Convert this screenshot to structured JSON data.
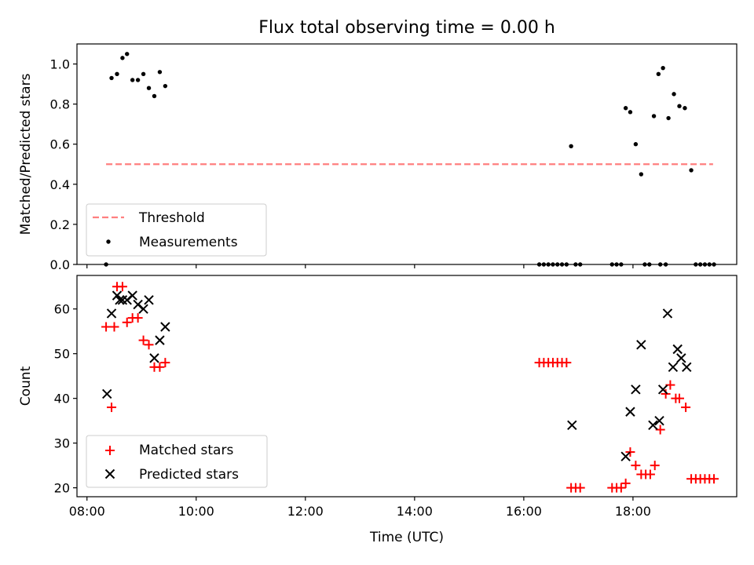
{
  "colors": {
    "threshold": "#ff7f7f",
    "measurements": "#000000",
    "matched": "#ff0000",
    "predicted": "#000000",
    "legend_border": "#cccccc"
  },
  "chart_data": [
    {
      "type": "scatter",
      "title": "Flux total observing time = 0.00 h",
      "xlabel": "",
      "ylabel": "Matched/Predicted stars",
      "xlim": [
        "07:49",
        "19:54"
      ],
      "ylim": [
        0,
        1.1
      ],
      "yticks": [
        0.0,
        0.2,
        0.4,
        0.6,
        0.8,
        1.0
      ],
      "ytick_labels": [
        "0.0",
        "0.2",
        "0.4",
        "0.6",
        "0.8",
        "1.0"
      ],
      "xticks": [
        "08:00",
        "10:00",
        "12:00",
        "14:00",
        "16:00",
        "18:00"
      ],
      "grid": false,
      "legend_position": "lower-left",
      "threshold": {
        "name": "Threshold",
        "x": [
          "08:21",
          "19:28"
        ],
        "y": 0.5,
        "style": "dashed"
      },
      "series": [
        {
          "name": "Measurements",
          "marker": "dot",
          "x": [
            "08:21",
            "08:27",
            "08:33",
            "08:39",
            "08:44",
            "08:50",
            "08:56",
            "09:02",
            "09:08",
            "09:14",
            "09:20",
            "09:26",
            "16:17",
            "16:22",
            "16:27",
            "16:32",
            "16:37",
            "16:42",
            "16:47",
            "16:52",
            "16:57",
            "17:02",
            "17:37",
            "17:42",
            "17:47",
            "17:52",
            "17:57",
            "18:03",
            "18:09",
            "18:13",
            "18:18",
            "18:23",
            "18:28",
            "18:33",
            "18:39",
            "18:45",
            "18:51",
            "18:57",
            "19:04",
            "19:09",
            "19:14",
            "19:19",
            "19:24",
            "19:29",
            "18:30",
            "18:36"
          ],
          "y": [
            0.0,
            0.93,
            0.95,
            1.03,
            1.05,
            0.92,
            0.92,
            0.95,
            0.88,
            0.84,
            0.96,
            0.89,
            0.0,
            0.0,
            0.0,
            0.0,
            0.0,
            0.0,
            0.0,
            0.59,
            0.0,
            0.0,
            0.0,
            0.0,
            0.0,
            0.78,
            0.76,
            0.6,
            0.45,
            0.0,
            0.0,
            0.74,
            0.95,
            0.98,
            0.73,
            0.85,
            0.79,
            0.78,
            0.47,
            0.0,
            0.0,
            0.0,
            0.0,
            0.0,
            0.0,
            0.0
          ]
        }
      ]
    },
    {
      "type": "scatter",
      "title": "",
      "xlabel": "Time (UTC)",
      "ylabel": "Count",
      "xlim": [
        "07:49",
        "19:54"
      ],
      "ylim": [
        18,
        67.5
      ],
      "yticks": [
        20,
        30,
        40,
        50,
        60
      ],
      "ytick_labels": [
        "20",
        "30",
        "40",
        "50",
        "60"
      ],
      "xticks": [
        "08:00",
        "10:00",
        "12:00",
        "14:00",
        "16:00",
        "18:00"
      ],
      "xtick_labels": [
        "08:00",
        "10:00",
        "12:00",
        "14:00",
        "16:00",
        "18:00"
      ],
      "grid": false,
      "legend_position": "lower-left",
      "series": [
        {
          "name": "Matched stars",
          "marker": "plus",
          "x": [
            "08:21",
            "08:27",
            "08:30",
            "08:39",
            "08:44",
            "08:50",
            "08:56",
            "09:02",
            "09:08",
            "09:14",
            "09:20",
            "09:26",
            "16:17",
            "16:22",
            "16:27",
            "16:32",
            "16:37",
            "16:42",
            "16:47",
            "16:52",
            "16:57",
            "17:02",
            "17:37",
            "17:42",
            "17:47",
            "17:52",
            "17:57",
            "18:03",
            "18:09",
            "18:14",
            "18:19",
            "18:24",
            "18:30",
            "18:36",
            "18:41",
            "18:47",
            "18:51",
            "18:58",
            "19:04",
            "19:09",
            "19:14",
            "19:19",
            "19:24",
            "19:29",
            "08:33"
          ],
          "y": [
            56,
            38,
            56,
            65,
            57,
            58,
            58,
            53,
            52,
            47,
            47,
            48,
            48,
            48,
            48,
            48,
            48,
            48,
            48,
            20,
            20,
            20,
            20,
            20,
            20,
            21,
            28,
            25,
            23,
            23,
            23,
            25,
            33,
            41,
            43,
            40,
            40,
            38,
            22,
            22,
            22,
            22,
            22,
            22,
            65
          ]
        },
        {
          "name": "Predicted stars",
          "marker": "x",
          "x": [
            "08:22",
            "08:27",
            "08:33",
            "08:39",
            "08:44",
            "08:50",
            "08:56",
            "09:02",
            "09:08",
            "09:14",
            "09:20",
            "09:26",
            "16:53",
            "17:52",
            "17:57",
            "18:03",
            "18:09",
            "18:22",
            "18:29",
            "18:33",
            "18:38",
            "18:44",
            "18:49",
            "18:53",
            "18:59",
            "08:36"
          ],
          "y": [
            41,
            59,
            63,
            62,
            62,
            63,
            61,
            60,
            62,
            49,
            53,
            56,
            34,
            27,
            37,
            42,
            52,
            34,
            35,
            42,
            59,
            47,
            51,
            49,
            47,
            62
          ]
        }
      ]
    }
  ]
}
